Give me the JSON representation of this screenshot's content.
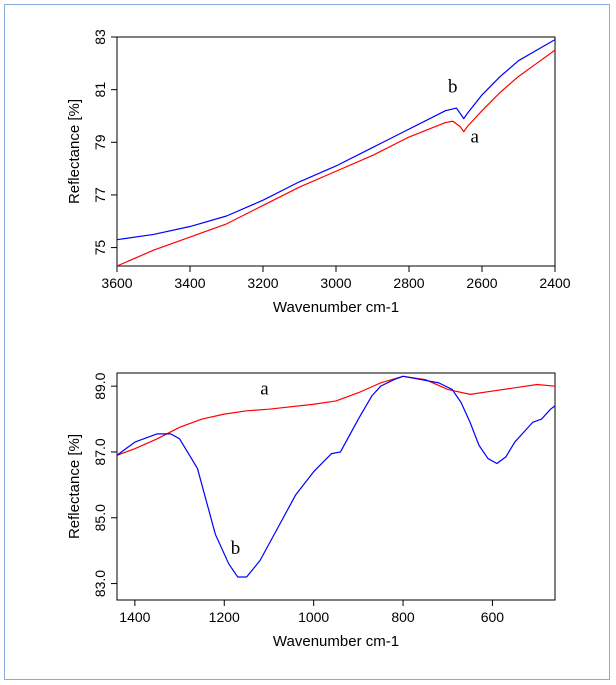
{
  "chart_data": [
    {
      "type": "line",
      "title": "",
      "xlabel": "Wavenumber cm-1",
      "ylabel": "Reflectance [%]",
      "xlim": [
        3600,
        2400
      ],
      "ylim": [
        74.3,
        83.0
      ],
      "x_ticks": [
        "3600",
        "3400",
        "3200",
        "3000",
        "2800",
        "2600",
        "2400"
      ],
      "y_ticks": [
        "75",
        "77",
        "79",
        "81",
        "83"
      ],
      "grid": false,
      "legend": "none",
      "series": [
        {
          "name": "a",
          "color": "#ff0000",
          "x": [
            3600,
            3500,
            3400,
            3300,
            3200,
            3100,
            3000,
            2900,
            2800,
            2700,
            2680,
            2660,
            2650,
            2640,
            2600,
            2550,
            2500,
            2450,
            2400
          ],
          "y": [
            74.3,
            74.9,
            75.4,
            75.9,
            76.6,
            77.3,
            77.9,
            78.5,
            79.2,
            79.75,
            79.8,
            79.6,
            79.4,
            79.6,
            80.2,
            80.9,
            81.5,
            82.0,
            82.5
          ]
        },
        {
          "name": "b",
          "color": "#0000ff",
          "x": [
            3600,
            3500,
            3400,
            3300,
            3200,
            3100,
            3000,
            2900,
            2800,
            2700,
            2670,
            2660,
            2650,
            2640,
            2600,
            2550,
            2500,
            2450,
            2400
          ],
          "y": [
            75.3,
            75.5,
            75.8,
            76.2,
            76.8,
            77.5,
            78.1,
            78.8,
            79.5,
            80.2,
            80.3,
            80.1,
            79.9,
            80.1,
            80.8,
            81.5,
            82.1,
            82.5,
            82.9
          ]
        }
      ],
      "annotations": [
        {
          "text": "b",
          "x": 2680,
          "y": 80.9
        },
        {
          "text": "a",
          "x": 2620,
          "y": 79.0
        }
      ]
    },
    {
      "type": "line",
      "title": "",
      "xlabel": "Wavenumber cm-1",
      "ylabel": "Reflectance [%]",
      "xlim": [
        1440,
        460
      ],
      "ylim": [
        82.5,
        89.4
      ],
      "x_ticks": [
        "1400",
        "1200",
        "1000",
        "800",
        "600"
      ],
      "y_ticks": [
        "83.0",
        "85.0",
        "87.0",
        "89.0"
      ],
      "grid": false,
      "legend": "none",
      "series": [
        {
          "name": "a",
          "color": "#ff0000",
          "x": [
            1440,
            1400,
            1350,
            1300,
            1250,
            1200,
            1150,
            1100,
            1000,
            950,
            900,
            850,
            800,
            750,
            700,
            650,
            600,
            550,
            500,
            460
          ],
          "y": [
            86.9,
            87.1,
            87.4,
            87.75,
            88.0,
            88.15,
            88.25,
            88.3,
            88.45,
            88.55,
            88.8,
            89.1,
            89.3,
            89.2,
            88.9,
            88.75,
            88.85,
            88.95,
            89.05,
            89.0
          ]
        },
        {
          "name": "b",
          "color": "#0000ff",
          "x": [
            1440,
            1400,
            1350,
            1320,
            1300,
            1260,
            1220,
            1190,
            1170,
            1150,
            1120,
            1080,
            1040,
            1000,
            960,
            940,
            900,
            870,
            850,
            820,
            800,
            760,
            720,
            690,
            670,
            650,
            630,
            610,
            590,
            570,
            550,
            530,
            510,
            490,
            470,
            460
          ],
          "y": [
            86.9,
            87.3,
            87.55,
            87.55,
            87.4,
            86.5,
            84.5,
            83.6,
            83.2,
            83.2,
            83.7,
            84.7,
            85.7,
            86.4,
            86.95,
            87.0,
            88.0,
            88.7,
            89.0,
            89.2,
            89.3,
            89.2,
            89.1,
            88.9,
            88.5,
            87.9,
            87.2,
            86.8,
            86.65,
            86.85,
            87.3,
            87.6,
            87.9,
            88.0,
            88.3,
            88.4
          ]
        }
      ],
      "annotations": [
        {
          "text": "a",
          "x": 1110,
          "y": 88.75
        },
        {
          "text": "b",
          "x": 1175,
          "y": 83.9
        }
      ]
    }
  ]
}
